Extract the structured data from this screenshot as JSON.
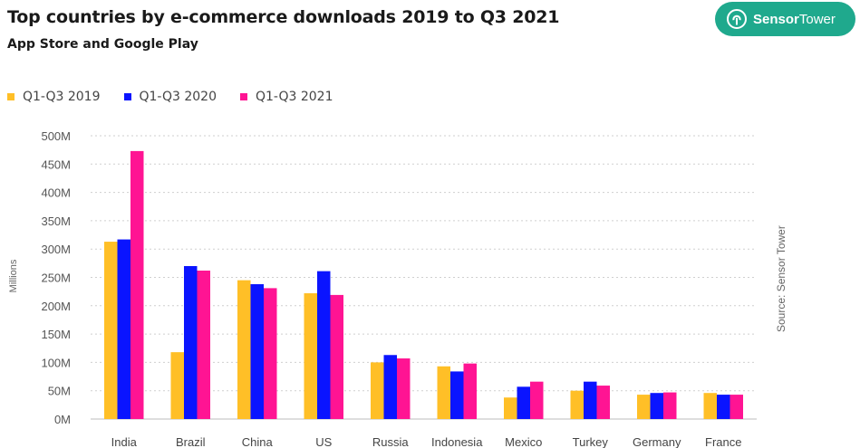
{
  "header": {
    "title": "Top countries by e-commerce downloads 2019 to Q3 2021",
    "subtitle": "App Store and Google Play"
  },
  "brand": {
    "name_bold": "Sensor",
    "name_rest": "Tower",
    "color": "#1fa98d"
  },
  "source_label": "Source: Sensor Tower",
  "chart_data": {
    "type": "bar",
    "title": "Top countries by e-commerce downloads 2019 to Q3 2021",
    "subtitle": "App Store and Google Play",
    "xlabel": "",
    "ylabel": "Millions",
    "ylim": [
      0,
      500
    ],
    "yticks": [
      0,
      50,
      100,
      150,
      200,
      250,
      300,
      350,
      400,
      450,
      500
    ],
    "ytick_labels": [
      "0M",
      "50M",
      "100M",
      "150M",
      "200M",
      "250M",
      "300M",
      "350M",
      "400M",
      "450M",
      "500M"
    ],
    "grid": true,
    "legend_position": "top-left",
    "categories": [
      "India",
      "Brazil",
      "China",
      "US",
      "Russia",
      "Indonesia",
      "Mexico",
      "Turkey",
      "Germany",
      "France"
    ],
    "series": [
      {
        "name": "Q1-Q3 2019",
        "color": "#ffbf27",
        "values": [
          313,
          118,
          245,
          222,
          100,
          93,
          38,
          50,
          43,
          46
        ]
      },
      {
        "name": "Q1-Q3 2020",
        "color": "#0a14ff",
        "values": [
          317,
          270,
          238,
          261,
          113,
          84,
          57,
          66,
          46,
          43
        ]
      },
      {
        "name": "Q1-Q3 2021",
        "color": "#ff1493",
        "values": [
          473,
          262,
          231,
          219,
          107,
          98,
          66,
          59,
          47,
          43
        ]
      }
    ]
  }
}
